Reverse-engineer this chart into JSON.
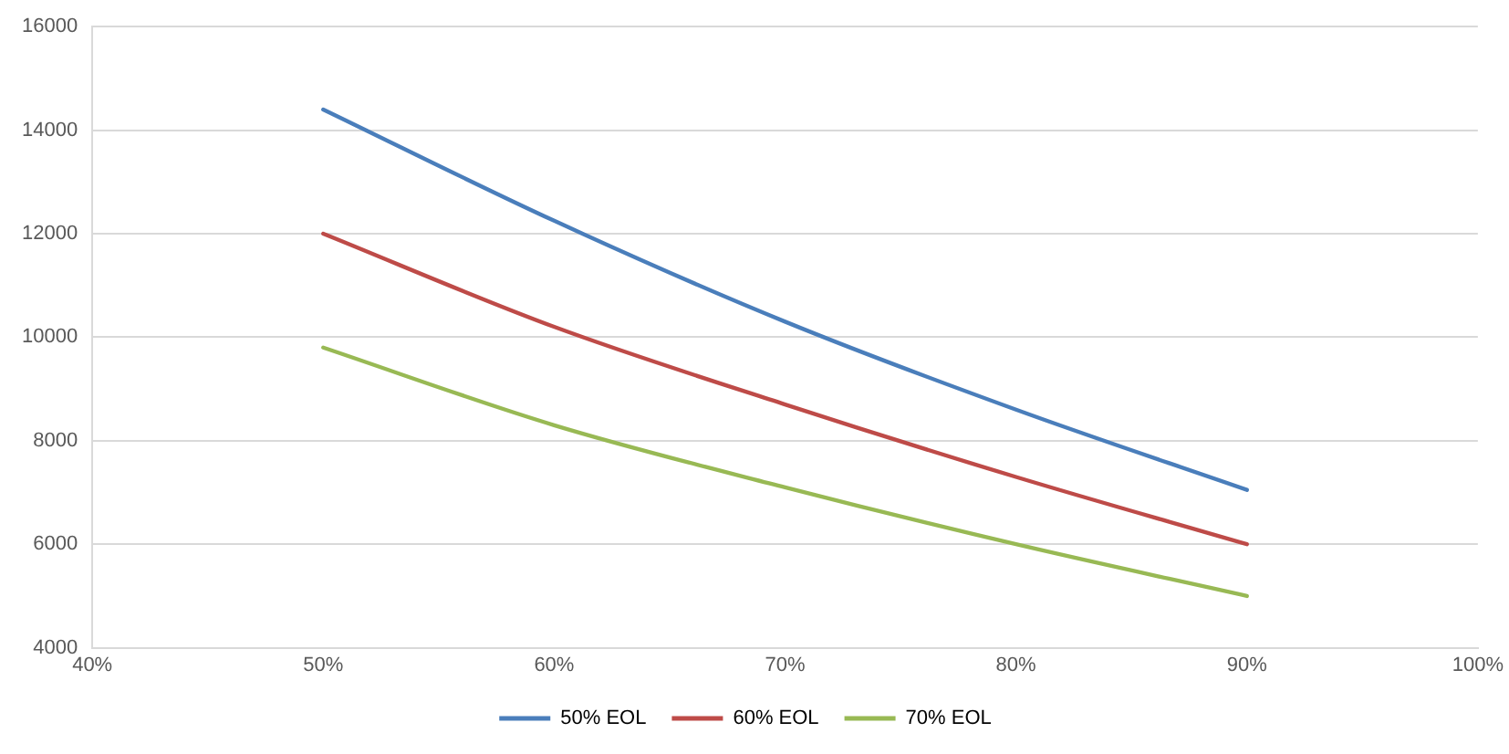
{
  "chart_data": {
    "type": "line",
    "x": [
      50,
      60,
      70,
      80,
      90
    ],
    "series": [
      {
        "name": "50% EOL",
        "color": "#4a7ebb",
        "values": [
          14400,
          12250,
          10300,
          8600,
          7050
        ]
      },
      {
        "name": "60% EOL",
        "color": "#be4b48",
        "values": [
          12000,
          10200,
          8700,
          7300,
          6000
        ]
      },
      {
        "name": "70% EOL",
        "color": "#98b954",
        "values": [
          9800,
          8300,
          7100,
          6000,
          5000
        ]
      }
    ],
    "xlim": [
      40,
      100
    ],
    "xticks": [
      {
        "value": 40,
        "label": "40%"
      },
      {
        "value": 50,
        "label": "50%"
      },
      {
        "value": 60,
        "label": "60%"
      },
      {
        "value": 70,
        "label": "70%"
      },
      {
        "value": 80,
        "label": "80%"
      },
      {
        "value": 90,
        "label": "90%"
      },
      {
        "value": 100,
        "label": "100%"
      }
    ],
    "ylim": [
      4000,
      16000
    ],
    "yticks": [
      4000,
      6000,
      8000,
      10000,
      12000,
      14000,
      16000
    ],
    "grid": "y",
    "legend": "bottom",
    "marker": "none",
    "line_style": "solid"
  }
}
